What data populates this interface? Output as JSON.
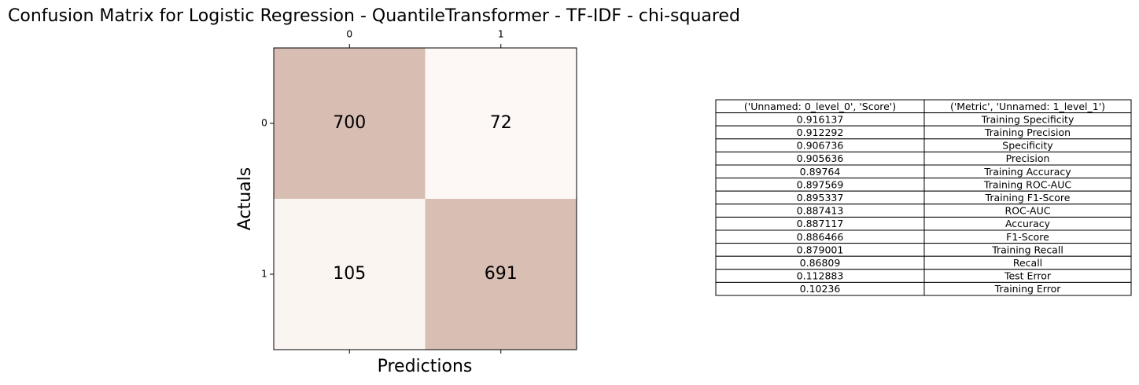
{
  "chart_data": {
    "type": "heatmap",
    "title": "Confusion Matrix for Logistic Regression - QuantileTransformer - TF-IDF - chi-squared",
    "xlabel": "Predictions",
    "ylabel": "Actuals",
    "x_categories": [
      "0",
      "1"
    ],
    "y_categories": [
      "0",
      "1"
    ],
    "values": [
      [
        700,
        72
      ],
      [
        105,
        691
      ]
    ],
    "colors": [
      "#fdf8f5",
      "#d8bdb3"
    ]
  },
  "table": {
    "columns": [
      "('Unnamed: 0_level_0', 'Score')",
      "('Metric', 'Unnamed: 1_level_1')"
    ],
    "rows": [
      [
        0.916137,
        "Training Specificity"
      ],
      [
        0.912292,
        "Training Precision"
      ],
      [
        0.906736,
        "Specificity"
      ],
      [
        0.905636,
        "Precision"
      ],
      [
        0.89764,
        "Training Accuracy"
      ],
      [
        0.897569,
        "Training ROC-AUC"
      ],
      [
        0.895337,
        "Training F1-Score"
      ],
      [
        0.887413,
        "ROC-AUC"
      ],
      [
        0.887117,
        "Accuracy"
      ],
      [
        0.886466,
        "F1-Score"
      ],
      [
        0.879001,
        "Training Recall"
      ],
      [
        0.86809,
        "Recall"
      ],
      [
        0.112883,
        "Test Error"
      ],
      [
        0.10236,
        "Training Error"
      ]
    ]
  }
}
